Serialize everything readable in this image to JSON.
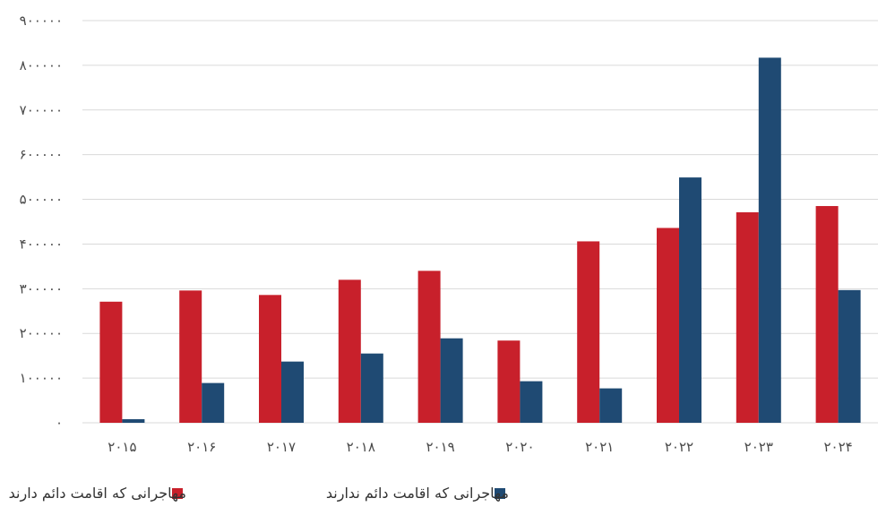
{
  "chart_data": {
    "type": "bar",
    "categories": [
      "۲۰۱۵",
      "۲۰۱۶",
      "۲۰۱۷",
      "۲۰۱۸",
      "۲۰۱۹",
      "۲۰۲۰",
      "۲۰۲۱",
      "۲۰۲۲",
      "۲۰۲۳",
      "۲۰۲۴"
    ],
    "y_ticks": [
      "۰",
      "۱۰۰۰۰۰",
      "۲۰۰۰۰۰",
      "۳۰۰۰۰۰",
      "۴۰۰۰۰۰",
      "۵۰۰۰۰۰",
      "۶۰۰۰۰۰",
      "۷۰۰۰۰۰",
      "۸۰۰۰۰۰",
      "۹۰۰۰۰۰"
    ],
    "ylim": [
      0,
      900000
    ],
    "grid": true,
    "legend_position": "bottom",
    "series": [
      {
        "name": "مهاجرانی  که اقامت دائم دارند",
        "color": "#c8202b",
        "values": [
          271000,
          296000,
          286000,
          320000,
          340000,
          184000,
          406000,
          436000,
          471000,
          485000
        ]
      },
      {
        "name": "مهاجرانی که اقامت دائم ندارند",
        "color": "#1f4a73",
        "values": [
          8000,
          89000,
          137000,
          155000,
          189000,
          93000,
          77000,
          549000,
          817000,
          297000
        ]
      }
    ]
  }
}
